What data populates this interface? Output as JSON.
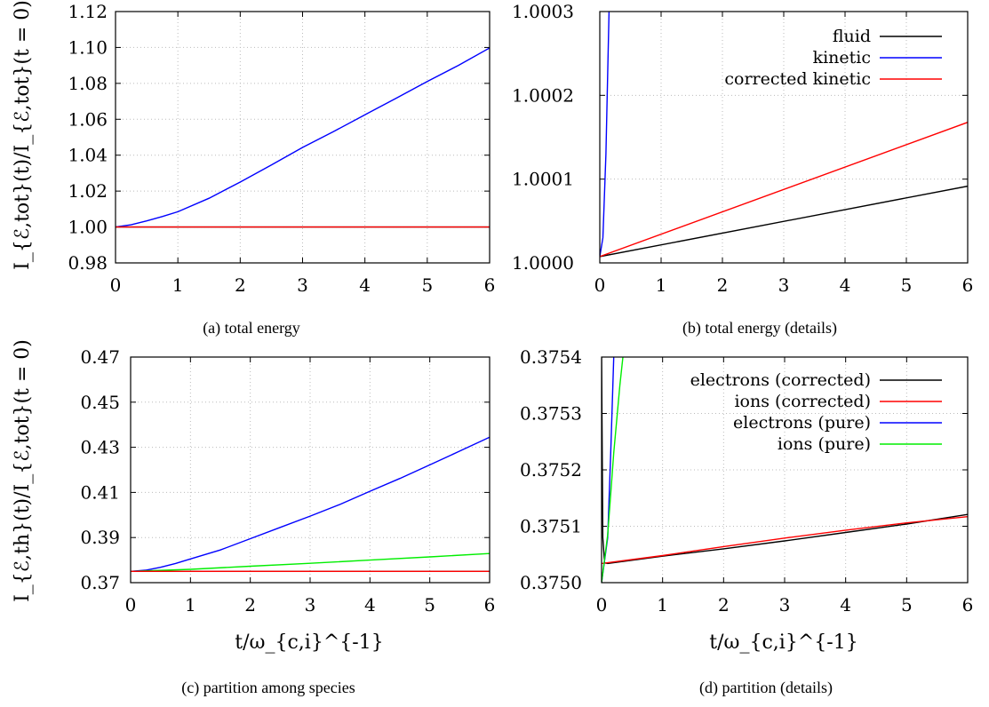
{
  "figure": {
    "ylabel_top": "I_{ℰ,tot}(t)/I_{ℰ,tot}(t = 0)",
    "ylabel_bottom": "I_{ℰ,th}(t)/I_{ℰ,tot}(t = 0)",
    "xlabel": "t/ω_{c,i}^{-1}"
  },
  "chart_data": [
    {
      "id": "a",
      "type": "line",
      "caption": "(a) total energy",
      "xlim": [
        0,
        6
      ],
      "ylim": [
        0.98,
        1.12
      ],
      "xticks": [
        "0",
        "1",
        "2",
        "3",
        "4",
        "5",
        "6"
      ],
      "yticks": [
        "0.98",
        "1.00",
        "1.02",
        "1.04",
        "1.06",
        "1.08",
        "1.10",
        "1.12"
      ],
      "grid": true,
      "series": [
        {
          "color": "#0000ff",
          "x": [
            0,
            0.25,
            0.5,
            0.75,
            1,
            1.5,
            2,
            2.5,
            3,
            3.5,
            4,
            4.5,
            5,
            5.5,
            6
          ],
          "y": [
            1.0,
            1.0012,
            1.0034,
            1.0058,
            1.0085,
            1.016,
            1.025,
            1.0345,
            1.0443,
            1.0532,
            1.0625,
            1.0717,
            1.081,
            1.09,
            1.0997
          ]
        },
        {
          "color": "#000000",
          "x": [
            0,
            6
          ],
          "y": [
            1.0,
            1.0
          ]
        },
        {
          "color": "#ff0000",
          "x": [
            0,
            6
          ],
          "y": [
            1.0,
            1.0
          ]
        }
      ]
    },
    {
      "id": "b",
      "type": "line",
      "caption": "(b) total energy (details)",
      "xlim": [
        0,
        6
      ],
      "ylim": [
        1.0,
        1.0003
      ],
      "xticks": [
        "0",
        "1",
        "2",
        "3",
        "4",
        "5",
        "6"
      ],
      "yticks": [
        "1.0000",
        "1.0001",
        "1.0002",
        "1.0003"
      ],
      "grid": true,
      "legend_position": "top-right",
      "series": [
        {
          "name": "fluid",
          "color": "#000000",
          "x": [
            0,
            6
          ],
          "y": [
            1.0000075,
            1.0000916
          ]
        },
        {
          "name": "kinetic",
          "color": "#0000ff",
          "x": [
            0,
            0.05,
            0.1,
            0.15
          ],
          "y": [
            1.0000075,
            1.00003,
            1.00013,
            1.0003
          ]
        },
        {
          "name": "corrected kinetic",
          "color": "#ff0000",
          "x": [
            0,
            6
          ],
          "y": [
            1.0000075,
            1.0001678
          ]
        }
      ]
    },
    {
      "id": "c",
      "type": "line",
      "caption": "(c) partition among species",
      "xlim": [
        0,
        6
      ],
      "ylim": [
        0.37,
        0.47
      ],
      "xticks": [
        "0",
        "1",
        "2",
        "3",
        "4",
        "5",
        "6"
      ],
      "yticks": [
        "0.37",
        "0.39",
        "0.41",
        "0.43",
        "0.45",
        "0.47"
      ],
      "grid": true,
      "series": [
        {
          "color": "#0000ff",
          "x": [
            0,
            0.25,
            0.5,
            0.75,
            1,
            1.5,
            2,
            2.5,
            3,
            3.5,
            4,
            4.5,
            5,
            5.5,
            6
          ],
          "y": [
            0.375,
            0.3755,
            0.3768,
            0.3785,
            0.3805,
            0.3845,
            0.3895,
            0.3945,
            0.3995,
            0.4047,
            0.4105,
            0.4162,
            0.4222,
            0.4283,
            0.4345
          ]
        },
        {
          "color": "#00ee00",
          "x": [
            0,
            1,
            2,
            3,
            4,
            5,
            6
          ],
          "y": [
            0.375,
            0.3759,
            0.3773,
            0.3786,
            0.38,
            0.3814,
            0.3829
          ]
        },
        {
          "color": "#000000",
          "x": [
            0,
            6
          ],
          "y": [
            0.375,
            0.375
          ]
        },
        {
          "color": "#ff0000",
          "x": [
            0,
            6
          ],
          "y": [
            0.375,
            0.375
          ]
        }
      ]
    },
    {
      "id": "d",
      "type": "line",
      "caption": "(d) partition (details)",
      "xlim": [
        0,
        6
      ],
      "ylim": [
        0.375,
        0.3754
      ],
      "xticks": [
        "0",
        "1",
        "2",
        "3",
        "4",
        "5",
        "6"
      ],
      "yticks": [
        "0.3750",
        "0.3751",
        "0.3752",
        "0.3753",
        "0.3754"
      ],
      "grid": true,
      "legend_position": "top-right",
      "series": [
        {
          "name": "electrons (corrected)",
          "color": "#000000",
          "x": [
            0,
            0.02,
            0.05,
            0.1,
            1,
            2,
            3,
            4,
            5,
            6
          ],
          "y": [
            0.3754,
            0.37508,
            0.375035,
            0.375034,
            0.375047,
            0.37506,
            0.375074,
            0.375089,
            0.375104,
            0.375121
          ]
        },
        {
          "name": "ions (corrected)",
          "color": "#ff0000",
          "x": [
            0,
            1,
            2,
            3,
            4,
            5,
            6
          ],
          "y": [
            0.375034,
            0.375048,
            0.375064,
            0.375079,
            0.375093,
            0.375106,
            0.375117
          ]
        },
        {
          "name": "electrons (pure)",
          "color": "#0000ff",
          "x": [
            0,
            0.1,
            0.15,
            0.2
          ],
          "y": [
            0.375,
            0.37508,
            0.37523,
            0.3754
          ]
        },
        {
          "name": "ions (pure)",
          "color": "#00ee00",
          "x": [
            0,
            0.1,
            0.2,
            0.3,
            0.35
          ],
          "y": [
            0.375,
            0.375085,
            0.37523,
            0.37535,
            0.3754
          ]
        }
      ]
    }
  ]
}
